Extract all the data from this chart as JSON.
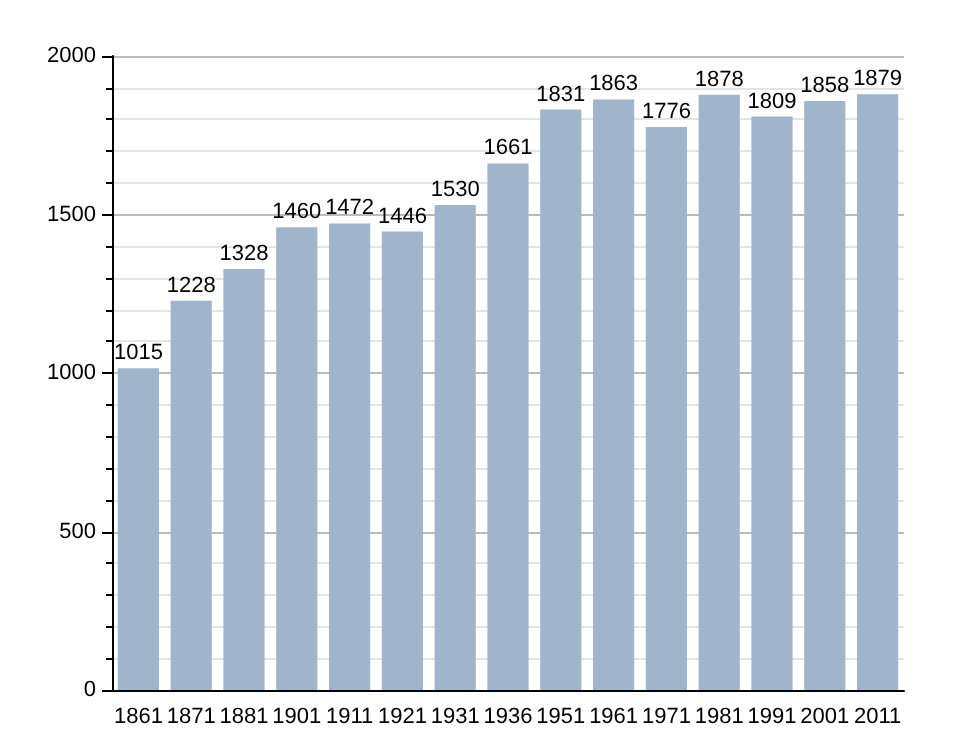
{
  "chart_data": {
    "type": "bar",
    "categories": [
      "1861",
      "1871",
      "1881",
      "1901",
      "1911",
      "1921",
      "1931",
      "1936",
      "1951",
      "1961",
      "1971",
      "1981",
      "1991",
      "2001",
      "2011"
    ],
    "values": [
      1015,
      1228,
      1328,
      1460,
      1472,
      1446,
      1530,
      1661,
      1831,
      1863,
      1776,
      1878,
      1809,
      1858,
      1879
    ],
    "color": "#a0b4cc",
    "ylim": [
      0,
      2000
    ],
    "yticks": [
      0,
      500,
      1000,
      1500,
      2000
    ],
    "grid": "y",
    "data_labels": true
  }
}
